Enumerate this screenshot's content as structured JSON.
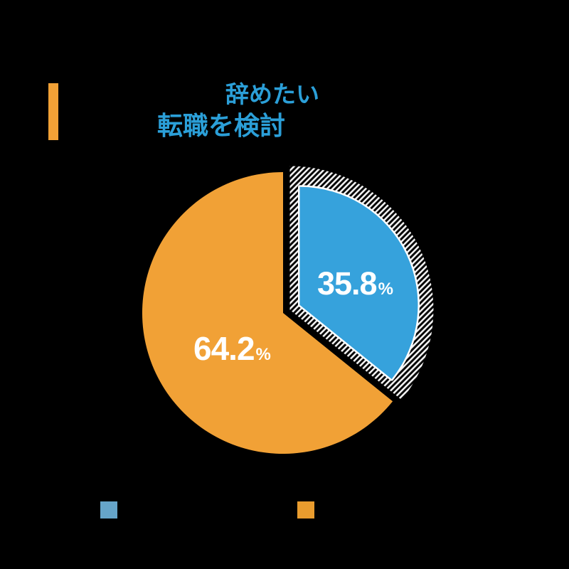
{
  "background_color": "#000000",
  "title": {
    "accent_bar_color": "#F2A136",
    "text_color": "#2B9FD8",
    "line1": "辞めたい",
    "line2": "転職を検討"
  },
  "chart_data": {
    "type": "pie",
    "start_angle_deg": 0,
    "direction": "clockwise",
    "title": "辞めたい / 転職を検討",
    "slices": [
      {
        "value": 35.8,
        "display_value": "35.8",
        "unit": "%",
        "color": "#36A2DC",
        "exploded": true,
        "outline_color": "#FFFFFF",
        "hatch_stripe_color": "#F2F2F2"
      },
      {
        "value": 64.2,
        "display_value": "64.2",
        "unit": "%",
        "color": "#F1A136",
        "exploded": false
      }
    ]
  },
  "legend": {
    "items": [
      {
        "swatch_color": "#66A5C9"
      },
      {
        "swatch_color": "#E99C2E"
      }
    ]
  }
}
